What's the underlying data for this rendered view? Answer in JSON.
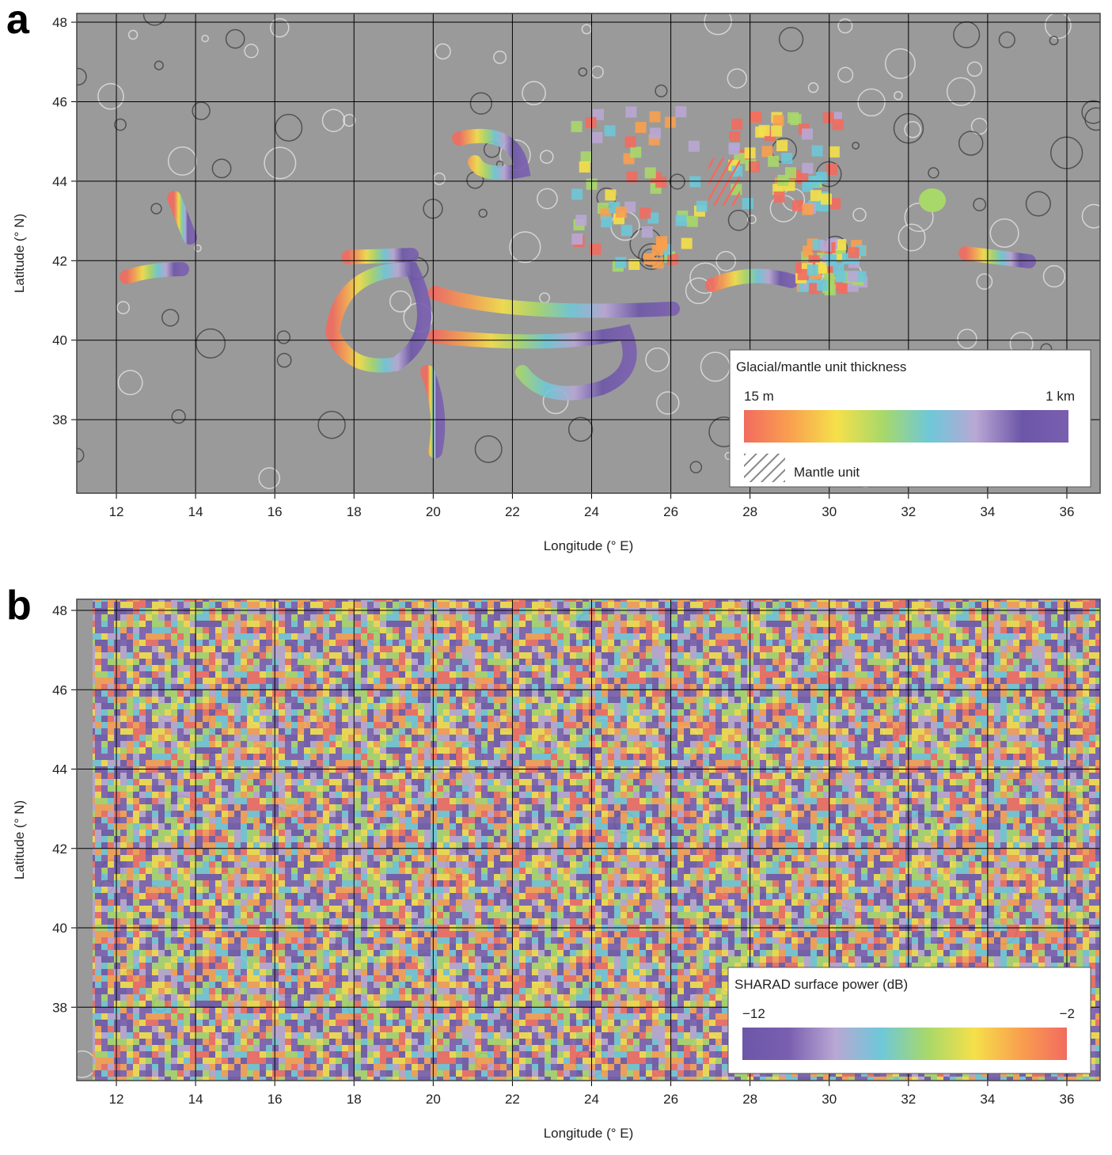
{
  "panels": [
    {
      "label": "a",
      "xlabel": "Longitude (° E)",
      "ylabel": "Latitude (° N)",
      "xlim": [
        11.0,
        36.84
      ],
      "ylim": [
        36.15,
        48.22
      ],
      "xticks": [
        12,
        14,
        16,
        18,
        20,
        22,
        24,
        26,
        28,
        30,
        32,
        34,
        36
      ],
      "yticks": [
        38,
        40,
        42,
        44,
        46,
        48
      ],
      "grid": true,
      "legend": {
        "title": "Glacial/mantle unit thickness",
        "min_label": "15 m",
        "max_label": "1 km",
        "colormap": [
          "#f26b5f",
          "#f9a04f",
          "#f5e04a",
          "#a8d86a",
          "#6ec8d8",
          "#b9a7d4",
          "#6c56a8",
          "#7a5fb0"
        ],
        "hatch_label": "Mantle unit"
      }
    },
    {
      "label": "b",
      "xlabel": "Longitude (° E)",
      "ylabel": "Latitude (° N)",
      "xlim": [
        11.0,
        36.84
      ],
      "ylim": [
        36.15,
        48.28
      ],
      "xticks": [
        12,
        14,
        16,
        18,
        20,
        22,
        24,
        26,
        28,
        30,
        32,
        34,
        36
      ],
      "yticks": [
        38,
        40,
        42,
        44,
        46,
        48
      ],
      "grid": true,
      "legend": {
        "title": "SHARAD surface power (dB)",
        "min_label": "−12",
        "max_label": "−2",
        "colormap": [
          "#6c56a8",
          "#7a5fb0",
          "#b9a7d4",
          "#6ec8d8",
          "#a8d86a",
          "#f5e04a",
          "#f9a04f",
          "#f26b5f"
        ]
      }
    }
  ]
}
